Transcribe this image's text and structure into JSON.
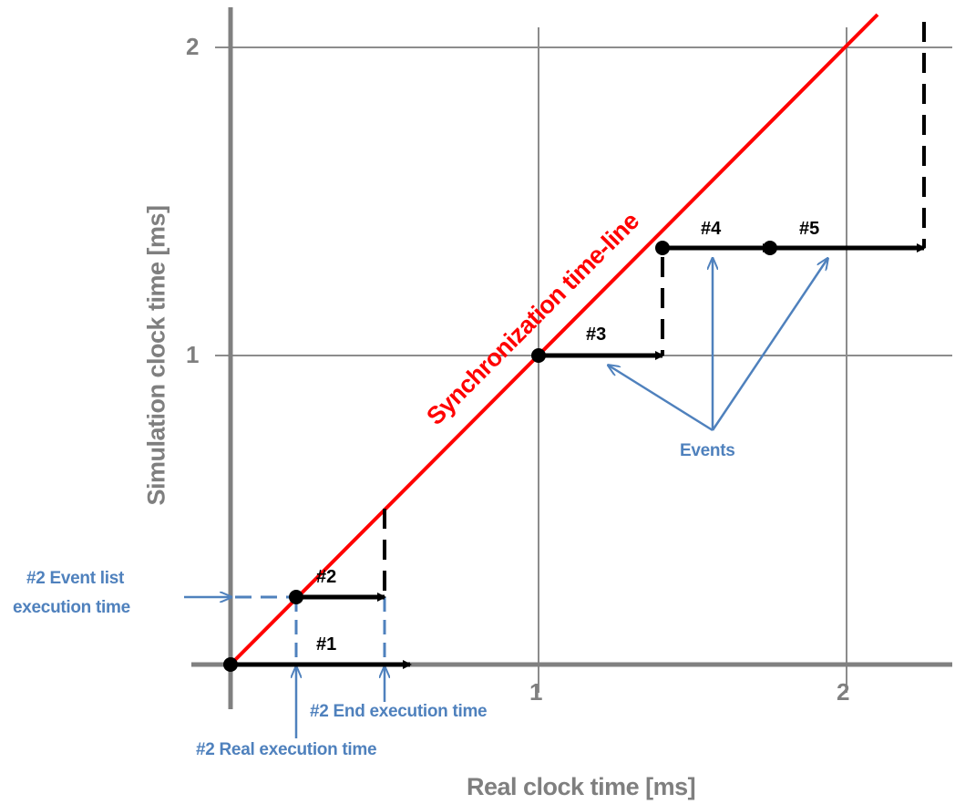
{
  "x_axis": {
    "title": "Real clock time [ms]",
    "ticks": [
      "1",
      "2"
    ]
  },
  "y_axis": {
    "title": "Simulation clock time [ms]",
    "ticks": [
      "1",
      "2"
    ]
  },
  "sync_line_label": "Synchronization time-line",
  "events": [
    {
      "id": "#1",
      "start_real": 0.0,
      "end_real": 0.58,
      "sim": 0.0
    },
    {
      "id": "#2",
      "start_real": 0.21,
      "end_real": 0.5,
      "sim": 0.22
    },
    {
      "id": "#3",
      "start_real": 1.0,
      "end_real": 1.4,
      "sim": 1.0
    },
    {
      "id": "#4",
      "start_real": 1.4,
      "end_real": 1.75,
      "sim": 1.35
    },
    {
      "id": "#5",
      "start_real": 1.75,
      "end_real": 2.25,
      "sim": 1.35
    }
  ],
  "annotations": {
    "events_label": "Events",
    "event_list_time_line1": "#2 Event list",
    "event_list_time_line2": "execution time",
    "end_execution": "#2 End execution time",
    "real_execution": "#2 Real execution time"
  },
  "colors": {
    "axis": "#808080",
    "grid": "#8c8c8c",
    "sync_line": "#ff0000",
    "event_arrow": "#000000",
    "annotation": "#4f81bd"
  }
}
